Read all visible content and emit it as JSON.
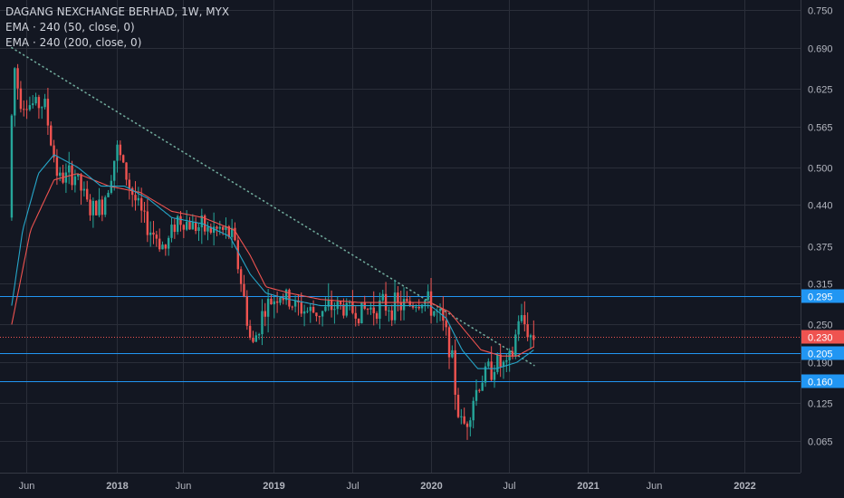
{
  "chart_data": {
    "type": "candlestick",
    "title": "DAGANG NEXCHANGE BERHAD, 1W, MYX",
    "indicators": [
      "EMA · 240 (50, close, 0)",
      "EMA · 240 (200, close, 0)"
    ],
    "y_ticks": [
      "0.750",
      "0.690",
      "0.625",
      "0.565",
      "0.500",
      "0.440",
      "0.375",
      "0.315",
      "0.250",
      "0.190",
      "0.125",
      "0.065"
    ],
    "ylim": [
      0.03,
      0.76
    ],
    "x_ticks": [
      {
        "label": "Jun",
        "x": 2017.42,
        "bold": false
      },
      {
        "label": "2018",
        "x": 2018.0,
        "bold": true
      },
      {
        "label": "Jun",
        "x": 2018.42,
        "bold": false
      },
      {
        "label": "2019",
        "x": 2019.0,
        "bold": true
      },
      {
        "label": "Jul",
        "x": 2019.5,
        "bold": false
      },
      {
        "label": "2020",
        "x": 2020.0,
        "bold": true
      },
      {
        "label": "Jul",
        "x": 2020.5,
        "bold": false
      },
      {
        "label": "2021",
        "x": 2021.0,
        "bold": true
      },
      {
        "label": "Jun",
        "x": 2021.42,
        "bold": false
      },
      {
        "label": "2022",
        "x": 2022.0,
        "bold": true
      }
    ],
    "xlim": [
      2017.32,
      2022.35
    ],
    "horizontal_levels": [
      {
        "value": 0.295,
        "label": "0.295",
        "color": "#2196f3"
      },
      {
        "value": 0.205,
        "label": "0.205",
        "color": "#2196f3"
      },
      {
        "value": 0.16,
        "label": "0.160",
        "color": "#2196f3"
      }
    ],
    "last_price": {
      "value": 0.23,
      "label": "0.230",
      "color": "#ef5350"
    },
    "trendline": {
      "from": {
        "x": 2017.33,
        "y": 0.69
      },
      "to": {
        "x": 2020.66,
        "y": 0.185
      },
      "color": "#6fa89a"
    },
    "price_path": [
      {
        "x": 2017.33,
        "y": 0.42
      },
      {
        "x": 2017.36,
        "y": 0.67
      },
      {
        "x": 2017.4,
        "y": 0.61
      },
      {
        "x": 2017.46,
        "y": 0.6
      },
      {
        "x": 2017.56,
        "y": 0.6
      },
      {
        "x": 2017.6,
        "y": 0.54
      },
      {
        "x": 2017.65,
        "y": 0.48
      },
      {
        "x": 2017.75,
        "y": 0.49
      },
      {
        "x": 2017.85,
        "y": 0.43
      },
      {
        "x": 2017.93,
        "y": 0.44
      },
      {
        "x": 2018.02,
        "y": 0.53
      },
      {
        "x": 2018.1,
        "y": 0.47
      },
      {
        "x": 2018.2,
        "y": 0.41
      },
      {
        "x": 2018.27,
        "y": 0.39
      },
      {
        "x": 2018.33,
        "y": 0.37
      },
      {
        "x": 2018.4,
        "y": 0.42
      },
      {
        "x": 2018.48,
        "y": 0.41
      },
      {
        "x": 2018.6,
        "y": 0.4
      },
      {
        "x": 2018.68,
        "y": 0.4
      },
      {
        "x": 2018.76,
        "y": 0.39
      },
      {
        "x": 2018.83,
        "y": 0.29
      },
      {
        "x": 2018.88,
        "y": 0.21
      },
      {
        "x": 2018.95,
        "y": 0.27
      },
      {
        "x": 2019.05,
        "y": 0.3
      },
      {
        "x": 2019.15,
        "y": 0.28
      },
      {
        "x": 2019.25,
        "y": 0.27
      },
      {
        "x": 2019.33,
        "y": 0.27
      },
      {
        "x": 2019.42,
        "y": 0.28
      },
      {
        "x": 2019.55,
        "y": 0.27
      },
      {
        "x": 2019.7,
        "y": 0.28
      },
      {
        "x": 2019.85,
        "y": 0.28
      },
      {
        "x": 2019.98,
        "y": 0.29
      },
      {
        "x": 2020.08,
        "y": 0.26
      },
      {
        "x": 2020.14,
        "y": 0.22
      },
      {
        "x": 2020.2,
        "y": 0.1
      },
      {
        "x": 2020.24,
        "y": 0.09
      },
      {
        "x": 2020.3,
        "y": 0.14
      },
      {
        "x": 2020.36,
        "y": 0.17
      },
      {
        "x": 2020.44,
        "y": 0.19
      },
      {
        "x": 2020.5,
        "y": 0.18
      },
      {
        "x": 2020.54,
        "y": 0.2
      },
      {
        "x": 2020.58,
        "y": 0.26
      },
      {
        "x": 2020.62,
        "y": 0.25
      },
      {
        "x": 2020.66,
        "y": 0.23
      }
    ],
    "ema50": [
      {
        "x": 2017.33,
        "y": 0.28
      },
      {
        "x": 2017.4,
        "y": 0.4
      },
      {
        "x": 2017.5,
        "y": 0.49
      },
      {
        "x": 2017.6,
        "y": 0.52
      },
      {
        "x": 2017.75,
        "y": 0.5
      },
      {
        "x": 2017.9,
        "y": 0.47
      },
      {
        "x": 2018.05,
        "y": 0.47
      },
      {
        "x": 2018.2,
        "y": 0.45
      },
      {
        "x": 2018.35,
        "y": 0.42
      },
      {
        "x": 2018.55,
        "y": 0.41
      },
      {
        "x": 2018.72,
        "y": 0.39
      },
      {
        "x": 2018.85,
        "y": 0.33
      },
      {
        "x": 2018.95,
        "y": 0.3
      },
      {
        "x": 2019.1,
        "y": 0.29
      },
      {
        "x": 2019.3,
        "y": 0.28
      },
      {
        "x": 2019.55,
        "y": 0.28
      },
      {
        "x": 2019.8,
        "y": 0.28
      },
      {
        "x": 2020.0,
        "y": 0.28
      },
      {
        "x": 2020.1,
        "y": 0.26
      },
      {
        "x": 2020.2,
        "y": 0.21
      },
      {
        "x": 2020.3,
        "y": 0.18
      },
      {
        "x": 2020.42,
        "y": 0.18
      },
      {
        "x": 2020.55,
        "y": 0.19
      },
      {
        "x": 2020.66,
        "y": 0.21
      }
    ],
    "ema200": [
      {
        "x": 2017.33,
        "y": 0.25
      },
      {
        "x": 2017.45,
        "y": 0.4
      },
      {
        "x": 2017.6,
        "y": 0.48
      },
      {
        "x": 2017.75,
        "y": 0.49
      },
      {
        "x": 2017.95,
        "y": 0.47
      },
      {
        "x": 2018.15,
        "y": 0.46
      },
      {
        "x": 2018.35,
        "y": 0.43
      },
      {
        "x": 2018.55,
        "y": 0.42
      },
      {
        "x": 2018.75,
        "y": 0.4
      },
      {
        "x": 2018.85,
        "y": 0.36
      },
      {
        "x": 2018.95,
        "y": 0.31
      },
      {
        "x": 2019.1,
        "y": 0.3
      },
      {
        "x": 2019.3,
        "y": 0.29
      },
      {
        "x": 2019.55,
        "y": 0.285
      },
      {
        "x": 2019.8,
        "y": 0.285
      },
      {
        "x": 2020.0,
        "y": 0.285
      },
      {
        "x": 2020.12,
        "y": 0.27
      },
      {
        "x": 2020.22,
        "y": 0.24
      },
      {
        "x": 2020.32,
        "y": 0.21
      },
      {
        "x": 2020.45,
        "y": 0.2
      },
      {
        "x": 2020.55,
        "y": 0.2
      },
      {
        "x": 2020.66,
        "y": 0.215
      }
    ],
    "colors": {
      "background": "#131722",
      "grid": "#2a2e39",
      "up": "#26a69a",
      "down": "#ef5350",
      "ema50": "#26a6c9",
      "ema200": "#ef5350",
      "axis_text": "#b2b5be"
    }
  }
}
